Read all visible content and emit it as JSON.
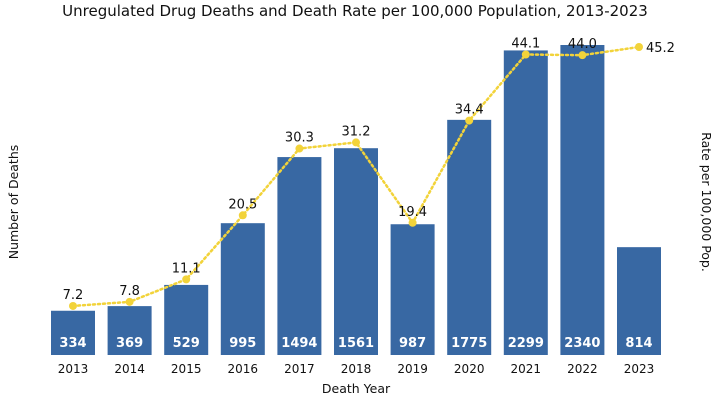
{
  "chart_data": {
    "type": "bar+line",
    "title": "Unregulated Drug Deaths and Death Rate per 100,000 Population, 2013-2023",
    "xlabel": "Death Year",
    "ylabel": "Number of Deaths",
    "y2label": "Rate per 100,000 Pop.",
    "categories": [
      "2013",
      "2014",
      "2015",
      "2016",
      "2017",
      "2018",
      "2019",
      "2020",
      "2021",
      "2022",
      "2023"
    ],
    "series": [
      {
        "type": "bar",
        "axis": "left",
        "values": [
          334,
          369,
          529,
          995,
          1494,
          1561,
          987,
          1775,
          2299,
          2340,
          814
        ],
        "color": "#3868a3"
      },
      {
        "type": "line",
        "axis": "right",
        "style": "dotted",
        "values": [
          7.2,
          7.8,
          11.1,
          20.5,
          30.3,
          31.2,
          19.4,
          34.4,
          44.1,
          44.0,
          45.2
        ],
        "color": "#f2d33a"
      }
    ],
    "ylim": [
      0,
      2340
    ],
    "y2lim": [
      0,
      45.2
    ],
    "grid": false,
    "legend": "none"
  }
}
